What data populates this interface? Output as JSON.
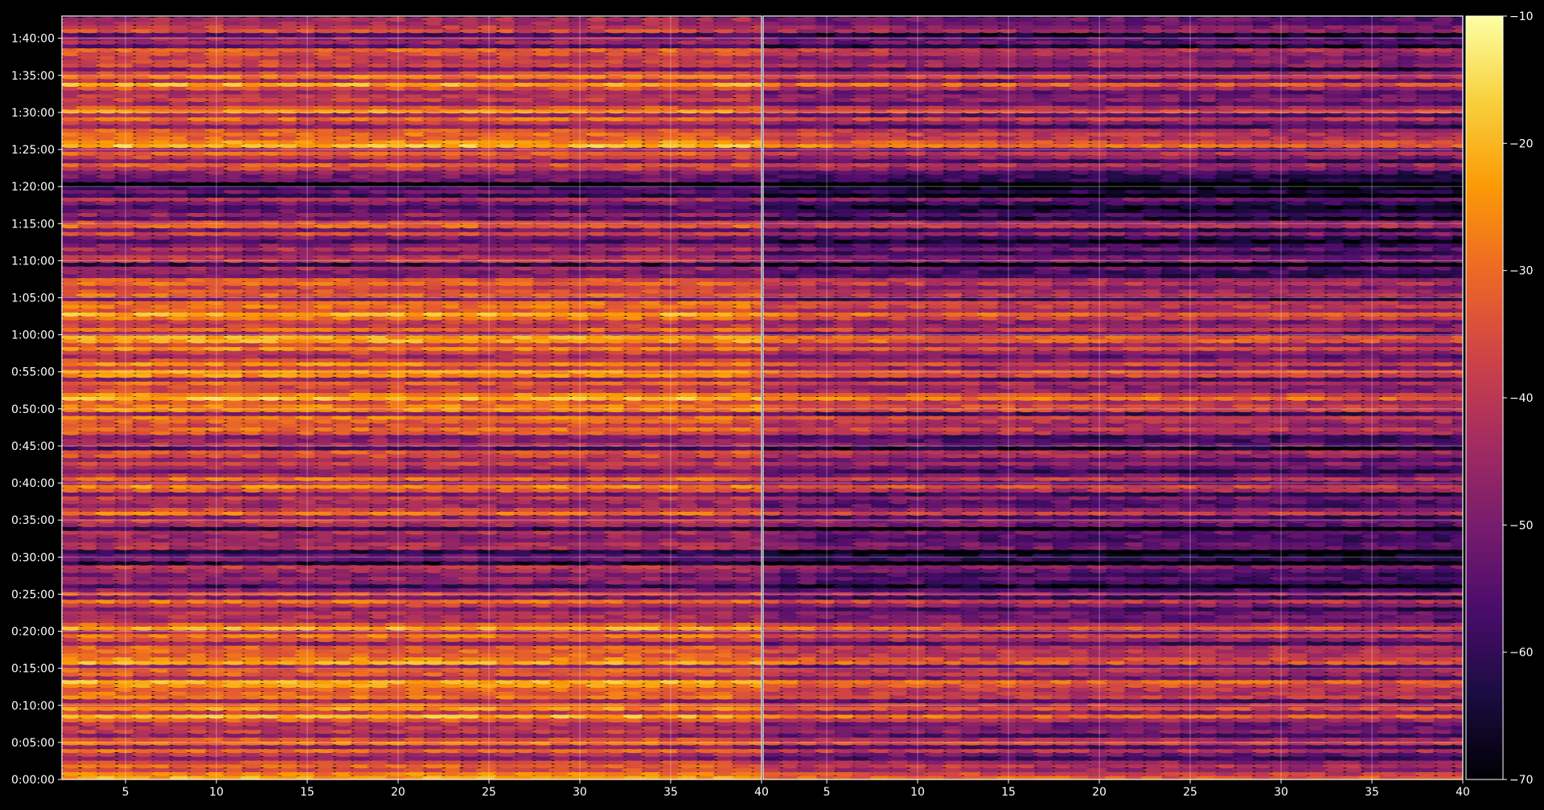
{
  "chart_data": [
    {
      "type": "heatmap",
      "panel": "left",
      "title": "",
      "xlabel": "",
      "ylabel": "",
      "xlim": [
        1.5,
        40
      ],
      "x_ticks": [
        5,
        10,
        15,
        20,
        25,
        30,
        35,
        40
      ],
      "ylim_seconds": [
        0,
        6180
      ],
      "y_ticks": [
        "0:00:00",
        "0:05:00",
        "0:10:00",
        "0:15:00",
        "0:20:00",
        "0:25:00",
        "0:30:00",
        "0:35:00",
        "0:40:00",
        "0:45:00",
        "0:50:00",
        "0:55:00",
        "1:00:00",
        "1:05:00",
        "1:10:00",
        "1:15:00",
        "1:20:00",
        "1:25:00",
        "1:30:00",
        "1:35:00",
        "1:40:00"
      ],
      "grid": true,
      "colormap": "inferno",
      "approx_row_profile_db": [
        {
          "time": "0:00:00",
          "value": -28
        },
        {
          "time": "0:05:00",
          "value": -36
        },
        {
          "time": "0:10:00",
          "value": -26
        },
        {
          "time": "0:15:00",
          "value": -27
        },
        {
          "time": "0:20:00",
          "value": -30
        },
        {
          "time": "0:25:00",
          "value": -40
        },
        {
          "time": "0:30:00",
          "value": -48
        },
        {
          "time": "0:35:00",
          "value": -38
        },
        {
          "time": "0:40:00",
          "value": -33
        },
        {
          "time": "0:45:00",
          "value": -40
        },
        {
          "time": "0:50:00",
          "value": -24
        },
        {
          "time": "0:55:00",
          "value": -30
        },
        {
          "time": "1:00:00",
          "value": -27
        },
        {
          "time": "1:05:00",
          "value": -28
        },
        {
          "time": "1:10:00",
          "value": -45
        },
        {
          "time": "1:15:00",
          "value": -38
        },
        {
          "time": "1:20:00",
          "value": -55
        },
        {
          "time": "1:25:00",
          "value": -24
        },
        {
          "time": "1:30:00",
          "value": -34
        },
        {
          "time": "1:35:00",
          "value": -30
        },
        {
          "time": "1:40:00",
          "value": -40
        }
      ]
    },
    {
      "type": "heatmap",
      "panel": "right",
      "title": "",
      "xlabel": "",
      "ylabel": "",
      "xlim": [
        1.5,
        40
      ],
      "x_ticks": [
        5,
        10,
        15,
        20,
        25,
        30,
        35,
        40
      ],
      "ylim_seconds": [
        0,
        6180
      ],
      "grid": true,
      "colormap": "inferno",
      "approx_row_profile_db": [
        {
          "time": "0:00:00",
          "value": -36
        },
        {
          "time": "0:05:00",
          "value": -44
        },
        {
          "time": "0:10:00",
          "value": -34
        },
        {
          "time": "0:15:00",
          "value": -35
        },
        {
          "time": "0:20:00",
          "value": -38
        },
        {
          "time": "0:25:00",
          "value": -48
        },
        {
          "time": "0:30:00",
          "value": -56
        },
        {
          "time": "0:35:00",
          "value": -46
        },
        {
          "time": "0:40:00",
          "value": -41
        },
        {
          "time": "0:45:00",
          "value": -48
        },
        {
          "time": "0:50:00",
          "value": -32
        },
        {
          "time": "0:55:00",
          "value": -38
        },
        {
          "time": "1:00:00",
          "value": -35
        },
        {
          "time": "1:05:00",
          "value": -36
        },
        {
          "time": "1:10:00",
          "value": -53
        },
        {
          "time": "1:15:00",
          "value": -46
        },
        {
          "time": "1:20:00",
          "value": -63
        },
        {
          "time": "1:25:00",
          "value": -32
        },
        {
          "time": "1:30:00",
          "value": -42
        },
        {
          "time": "1:35:00",
          "value": -38
        },
        {
          "time": "1:40:00",
          "value": -48
        }
      ]
    }
  ],
  "colorbar": {
    "range": [
      -70,
      -10
    ],
    "ticks": [
      "−10",
      "−20",
      "−30",
      "−40",
      "−50",
      "−60",
      "−70"
    ],
    "tick_values": [
      -10,
      -20,
      -30,
      -40,
      -50,
      -60,
      -70
    ],
    "colors": [
      "#000004",
      "#1b0c41",
      "#4a0c6b",
      "#781c6d",
      "#a52c60",
      "#cf4446",
      "#ed6925",
      "#fb9b06",
      "#f7d13d",
      "#fcffa4"
    ]
  },
  "colors": {
    "background": "#000000",
    "text": "#ffffff",
    "grid": "#ffffff"
  }
}
